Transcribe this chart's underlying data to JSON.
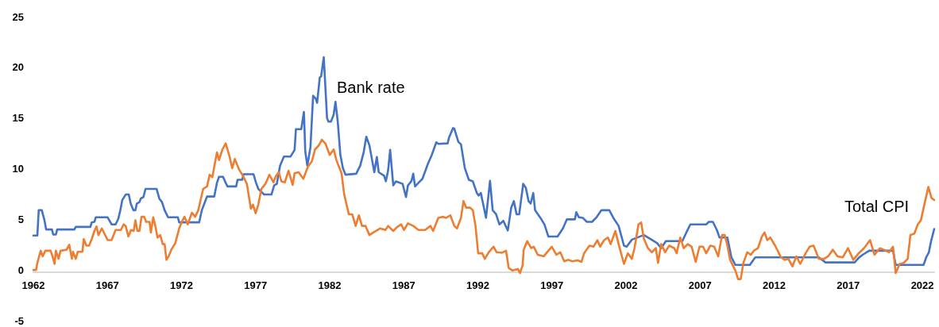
{
  "chart_data": {
    "type": "line",
    "xlim": [
      1962,
      2022.8
    ],
    "xticks": [
      1962,
      1967,
      1972,
      1977,
      1982,
      1987,
      1992,
      1997,
      2002,
      2007,
      2012,
      2017,
      2022
    ],
    "ylim": [
      -5,
      25
    ],
    "yticks": [
      -5,
      0,
      5,
      10,
      15,
      20,
      25
    ],
    "grid": false,
    "legend": false,
    "marker": "none",
    "line_style": "solid",
    "series": [
      {
        "name": "Bank rate",
        "color": "#4472c4",
        "x": [
          1962.0,
          1962.27,
          1962.36,
          1962.57,
          1962.75,
          1962.86,
          1963.25,
          1963.34,
          1963.52,
          1963.61,
          1964.77,
          1964.86,
          1965.85,
          1965.94,
          1966.12,
          1966.21,
          1967.01,
          1967.28,
          1967.55,
          1967.73,
          1967.87,
          1968.0,
          1968.23,
          1968.44,
          1968.57,
          1968.75,
          1968.89,
          1968.98,
          1969.16,
          1969.25,
          1969.43,
          1969.57,
          1970.32,
          1970.5,
          1970.68,
          1970.86,
          1971.09,
          1971.75,
          1971.84,
          1973.19,
          1973.37,
          1973.63,
          1973.72,
          1974.21,
          1974.39,
          1974.53,
          1974.8,
          1974.98,
          1975.1,
          1975.69,
          1975.78,
          1976.1,
          1976.18,
          1976.86,
          1977.03,
          1977.18,
          1977.57,
          1978.07,
          1978.25,
          1978.43,
          1978.65,
          1978.91,
          1979.36,
          1979.63,
          1979.72,
          1980.08,
          1980.26,
          1980.35,
          1980.49,
          1980.7,
          1980.88,
          1981.06,
          1981.15,
          1981.33,
          1981.42,
          1981.6,
          1981.82,
          1981.91,
          1982.09,
          1982.27,
          1982.39,
          1982.54,
          1982.72,
          1982.89,
          1983.07,
          1983.79,
          1984.06,
          1984.29,
          1984.47,
          1984.68,
          1985.01,
          1985.18,
          1985.31,
          1985.67,
          1985.79,
          1985.94,
          1986.08,
          1986.29,
          1986.47,
          1986.92,
          1987.15,
          1987.28,
          1987.51,
          1987.64,
          1987.76,
          1987.99,
          1988.26,
          1988.62,
          1988.89,
          1989.19,
          1989.33,
          1989.96,
          1990.05,
          1990.32,
          1990.41,
          1990.68,
          1990.86,
          1991.12,
          1991.39,
          1991.66,
          1991.93,
          1992.05,
          1992.2,
          1992.55,
          1992.82,
          1993.0,
          1993.23,
          1993.45,
          1993.72,
          1994.02,
          1994.25,
          1994.43,
          1994.61,
          1994.79,
          1995.06,
          1995.24,
          1995.42,
          1995.56,
          1995.74,
          1995.86,
          1996.22,
          1996.49,
          1996.76,
          1997.38,
          1997.74,
          1998.01,
          1998.55,
          1998.64,
          1998.82,
          1999.08,
          1999.35,
          1999.71,
          1999.98,
          2000.34,
          2000.87,
          2001.14,
          2001.5,
          2001.86,
          2002.04,
          2002.4,
          2003.2,
          2003.65,
          2004.1,
          2004.37,
          2004.69,
          2005.8,
          2006.07,
          2006.34,
          2007.41,
          2007.59,
          2007.86,
          2008.13,
          2008.31,
          2008.84,
          2009.11,
          2009.38,
          2010.36,
          2010.72,
          2015.01,
          2015.46,
          2017.43,
          2017.7,
          2017.97,
          2018.41,
          2020.02,
          2020.2,
          2022.08,
          2022.26,
          2022.44,
          2022.58,
          2022.8
        ],
        "values": [
          3.4,
          3.4,
          5.9,
          5.9,
          4.9,
          4.0,
          4.0,
          3.5,
          3.5,
          4.0,
          4.0,
          4.25,
          4.25,
          4.7,
          4.75,
          5.2,
          5.2,
          4.5,
          4.5,
          5.05,
          5.9,
          6.9,
          7.45,
          7.45,
          6.55,
          5.9,
          5.9,
          6.55,
          6.7,
          7.05,
          7.2,
          8.0,
          8.0,
          7.05,
          6.7,
          5.9,
          5.2,
          5.2,
          4.7,
          4.7,
          5.9,
          6.9,
          7.25,
          7.25,
          8.6,
          9.2,
          9.2,
          8.6,
          8.25,
          8.25,
          8.9,
          8.9,
          9.45,
          9.45,
          8.6,
          8.0,
          7.45,
          7.45,
          8.35,
          8.5,
          10.3,
          11.2,
          11.2,
          11.85,
          13.9,
          13.9,
          15.6,
          11.7,
          10.3,
          12.1,
          17.2,
          16.9,
          16.5,
          19.0,
          19.1,
          21.0,
          15.0,
          14.65,
          14.65,
          15.35,
          16.6,
          14.7,
          11.35,
          10.05,
          9.4,
          9.5,
          10.3,
          11.6,
          13.15,
          12.3,
          9.65,
          11.15,
          9.65,
          9.3,
          8.75,
          9.8,
          11.85,
          8.35,
          8.75,
          8.5,
          7.2,
          8.35,
          8.75,
          9.5,
          8.25,
          8.6,
          9.0,
          10.45,
          11.35,
          12.6,
          12.45,
          12.5,
          13.05,
          14.0,
          13.95,
          12.65,
          12.4,
          10.05,
          8.9,
          8.75,
          7.6,
          7.35,
          7.6,
          5.15,
          8.8,
          5.9,
          5.5,
          4.5,
          4.85,
          3.9,
          6.15,
          6.8,
          5.5,
          5.5,
          8.5,
          8.1,
          6.8,
          6.55,
          7.6,
          5.9,
          5.15,
          4.5,
          3.3,
          3.3,
          4.1,
          5.0,
          5.0,
          5.7,
          5.2,
          5.15,
          4.75,
          4.75,
          5.15,
          5.9,
          5.9,
          5.15,
          4.35,
          2.4,
          2.3,
          3.0,
          3.45,
          3.05,
          2.65,
          2.15,
          2.85,
          2.85,
          3.7,
          4.5,
          4.5,
          4.75,
          4.75,
          3.95,
          3.2,
          3.2,
          1.25,
          0.5,
          0.5,
          1.25,
          1.25,
          0.75,
          0.75,
          1.2,
          1.5,
          1.9,
          1.9,
          0.5,
          0.5,
          1.25,
          1.75,
          2.8,
          4.05
        ]
      },
      {
        "name": "Total CPI",
        "color": "#ed7d31",
        "x": [
          1962.0,
          1962.18,
          1962.27,
          1962.39,
          1962.5,
          1962.63,
          1962.81,
          1963.16,
          1963.29,
          1963.43,
          1963.52,
          1963.7,
          1963.83,
          1964.24,
          1964.42,
          1964.6,
          1964.68,
          1964.86,
          1965.0,
          1965.31,
          1965.4,
          1965.58,
          1965.76,
          1965.94,
          1966.12,
          1966.26,
          1966.39,
          1966.62,
          1966.83,
          1967.01,
          1967.28,
          1967.55,
          1967.91,
          1968.09,
          1968.23,
          1968.41,
          1968.59,
          1968.77,
          1968.89,
          1969.02,
          1969.16,
          1969.3,
          1969.48,
          1969.61,
          1969.84,
          1969.93,
          1970.09,
          1970.23,
          1970.38,
          1970.56,
          1970.73,
          1970.86,
          1970.98,
          1971.13,
          1971.31,
          1971.58,
          1971.84,
          1972.02,
          1972.2,
          1972.42,
          1972.7,
          1972.92,
          1973.13,
          1973.46,
          1973.72,
          1973.9,
          1974.08,
          1974.26,
          1974.39,
          1974.53,
          1974.76,
          1974.98,
          1975.24,
          1975.42,
          1975.6,
          1975.87,
          1976.14,
          1976.41,
          1976.68,
          1976.82,
          1977.0,
          1977.18,
          1977.39,
          1977.66,
          1977.93,
          1978.2,
          1978.38,
          1978.56,
          1978.74,
          1978.97,
          1979.22,
          1979.5,
          1979.63,
          1979.9,
          1980.22,
          1980.53,
          1980.79,
          1981.01,
          1981.24,
          1981.47,
          1981.72,
          1982.0,
          1982.27,
          1982.45,
          1982.8,
          1982.98,
          1983.29,
          1983.52,
          1983.75,
          1983.97,
          1984.18,
          1984.42,
          1984.68,
          1984.95,
          1985.4,
          1985.76,
          1985.94,
          1986.29,
          1986.56,
          1986.83,
          1987.01,
          1987.28,
          1987.64,
          1987.99,
          1988.44,
          1988.8,
          1988.98,
          1989.33,
          1989.66,
          1989.87,
          1990.14,
          1990.41,
          1990.59,
          1990.86,
          1991.03,
          1991.21,
          1991.48,
          1991.66,
          1991.84,
          1992.02,
          1992.29,
          1992.47,
          1992.73,
          1993.06,
          1993.27,
          1993.63,
          1993.9,
          1994.08,
          1994.34,
          1994.7,
          1994.84,
          1995.02,
          1995.09,
          1995.33,
          1995.6,
          1995.77,
          1996.04,
          1996.45,
          1996.67,
          1996.99,
          1997.3,
          1997.56,
          1997.83,
          1998.1,
          1998.37,
          1998.73,
          1998.99,
          1999.17,
          1999.53,
          1999.8,
          2000.07,
          2000.25,
          2000.52,
          2000.78,
          2000.96,
          2001.28,
          2001.5,
          2001.86,
          2002.12,
          2002.39,
          2002.57,
          2002.84,
          2003.02,
          2003.2,
          2003.48,
          2003.74,
          2004.01,
          2004.16,
          2004.37,
          2004.64,
          2004.91,
          2005.26,
          2005.41,
          2005.66,
          2005.89,
          2006.16,
          2006.43,
          2006.7,
          2006.96,
          2007.2,
          2007.41,
          2007.68,
          2007.95,
          2008.22,
          2008.48,
          2008.66,
          2008.84,
          2009.02,
          2009.38,
          2009.56,
          2009.74,
          2009.92,
          2010.18,
          2010.42,
          2010.63,
          2010.9,
          2011.17,
          2011.35,
          2011.53,
          2011.74,
          2012.06,
          2012.42,
          2012.69,
          2012.96,
          2013.23,
          2013.49,
          2013.76,
          2014.12,
          2014.39,
          2014.66,
          2015.01,
          2015.37,
          2015.64,
          2015.96,
          2016.27,
          2016.63,
          2016.98,
          2017.34,
          2017.7,
          2018.06,
          2018.47,
          2018.77,
          2019.13,
          2019.4,
          2019.75,
          2020.02,
          2020.2,
          2020.47,
          2020.74,
          2021.01,
          2021.19,
          2021.46,
          2021.69,
          2021.9,
          2022.17,
          2022.4,
          2022.62,
          2022.8
        ],
        "values": [
          0.0,
          0.0,
          0.7,
          1.35,
          1.9,
          1.35,
          1.9,
          1.9,
          1.35,
          0.6,
          1.9,
          1.1,
          1.9,
          2.0,
          2.5,
          1.1,
          1.8,
          1.1,
          1.8,
          1.8,
          3.05,
          2.4,
          2.4,
          3.05,
          3.85,
          4.3,
          3.45,
          4.1,
          3.5,
          2.95,
          2.95,
          3.95,
          3.95,
          4.5,
          4.35,
          3.3,
          3.95,
          3.85,
          4.9,
          3.85,
          3.85,
          5.25,
          5.25,
          4.75,
          4.75,
          3.7,
          5.2,
          4.35,
          3.2,
          3.45,
          2.55,
          2.55,
          1.0,
          1.35,
          2.0,
          2.65,
          4.1,
          4.75,
          5.25,
          4.5,
          5.65,
          5.25,
          5.9,
          8.0,
          8.25,
          9.4,
          9.15,
          10.6,
          11.6,
          10.85,
          11.9,
          12.5,
          11.2,
          10.05,
          10.95,
          9.95,
          9.3,
          8.5,
          6.05,
          6.45,
          5.6,
          6.45,
          8.0,
          8.5,
          9.4,
          8.65,
          9.3,
          9.65,
          8.75,
          8.65,
          9.8,
          8.4,
          9.55,
          9.65,
          9.0,
          10.2,
          10.7,
          11.9,
          12.25,
          12.85,
          12.45,
          11.35,
          11.9,
          10.85,
          9.55,
          7.45,
          5.5,
          5.5,
          4.35,
          5.4,
          4.35,
          4.35,
          3.45,
          3.7,
          4.1,
          3.95,
          4.35,
          3.85,
          4.25,
          4.5,
          3.95,
          4.6,
          4.35,
          3.95,
          3.95,
          4.35,
          3.85,
          5.15,
          5.25,
          5.15,
          5.4,
          4.35,
          4.1,
          5.15,
          6.8,
          6.15,
          6.15,
          5.9,
          4.35,
          1.65,
          1.65,
          1.1,
          1.75,
          2.3,
          1.75,
          1.7,
          1.9,
          0.2,
          -0.05,
          0.1,
          -0.3,
          0.45,
          2.0,
          2.85,
          2.15,
          2.3,
          1.5,
          1.35,
          1.75,
          2.3,
          1.5,
          1.75,
          0.85,
          1.0,
          0.85,
          0.95,
          0.8,
          1.65,
          2.4,
          2.3,
          2.95,
          2.3,
          2.95,
          3.2,
          2.55,
          3.85,
          2.55,
          0.6,
          1.65,
          1.1,
          2.15,
          4.5,
          4.7,
          3.1,
          2.15,
          1.75,
          2.15,
          0.7,
          2.55,
          1.75,
          2.4,
          2.15,
          1.65,
          3.2,
          2.15,
          2.55,
          2.3,
          0.8,
          2.3,
          2.3,
          1.65,
          2.4,
          2.3,
          1.35,
          3.45,
          3.45,
          2.4,
          1.0,
          -0.05,
          -0.9,
          -0.9,
          0.7,
          1.75,
          1.5,
          1.9,
          2.15,
          3.3,
          3.7,
          2.95,
          3.2,
          2.4,
          1.35,
          1.0,
          1.1,
          0.35,
          1.35,
          0.6,
          1.65,
          2.3,
          2.4,
          1.1,
          1.1,
          1.35,
          2.0,
          1.35,
          1.25,
          2.15,
          1.0,
          1.65,
          2.15,
          2.95,
          1.5,
          2.15,
          2.0,
          1.75,
          2.3,
          -0.3,
          0.6,
          0.7,
          1.1,
          3.45,
          3.6,
          4.5,
          4.9,
          6.7,
          8.2,
          7.1,
          6.9
        ]
      }
    ]
  }
}
